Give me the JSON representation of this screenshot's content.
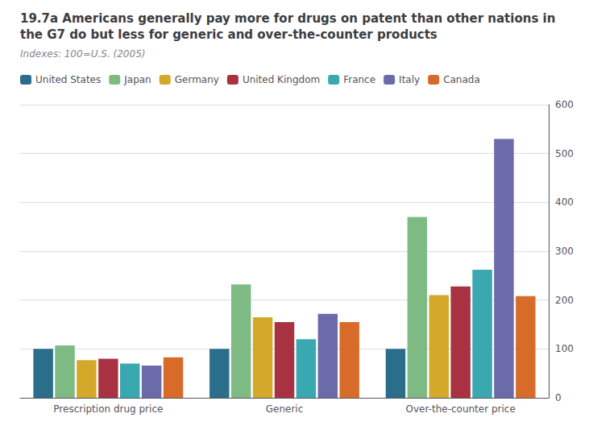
{
  "chart_data": {
    "type": "bar",
    "title": "19.7a Americans generally pay more for drugs on patent than other nations in the G7 do but less for generic and over-the-counter products",
    "subtitle": "Indexes: 100=U.S. (2005)",
    "categories": [
      "Prescription drug price",
      "Generic",
      "Over-the-counter price"
    ],
    "series": [
      {
        "name": "United States",
        "color": "#2b6e8a",
        "values": [
          100,
          100,
          100
        ]
      },
      {
        "name": "Japan",
        "color": "#7dba84",
        "values": [
          107,
          232,
          370
        ]
      },
      {
        "name": "Germany",
        "color": "#d4a829",
        "values": [
          77,
          165,
          210
        ]
      },
      {
        "name": "United Kingdom",
        "color": "#a83242",
        "values": [
          80,
          155,
          228
        ]
      },
      {
        "name": "France",
        "color": "#3aa8b0",
        "values": [
          70,
          120,
          262
        ]
      },
      {
        "name": "Italy",
        "color": "#6b6baa",
        "values": [
          66,
          172,
          530
        ]
      },
      {
        "name": "Canada",
        "color": "#d96b2a",
        "values": [
          83,
          155,
          208
        ]
      }
    ],
    "ylim": [
      0,
      600
    ],
    "yticks": [
      0,
      100,
      200,
      300,
      400,
      500,
      600
    ],
    "grid": true,
    "legend": "top-left"
  }
}
